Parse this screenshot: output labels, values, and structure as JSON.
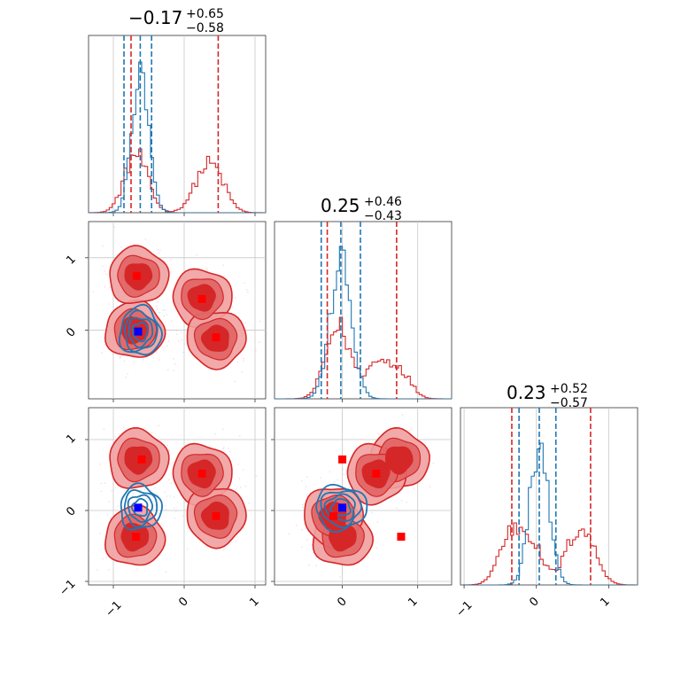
{
  "colors": {
    "red": "#d62728",
    "red_light": "#f0a0a0",
    "red_mid": "#e06666",
    "blue": "#1f77b4",
    "grid": "#c8c8c8",
    "marker_red": "#ff0000",
    "marker_blue": "#0000ff"
  },
  "titles": [
    {
      "value": "−0.17",
      "plus": "+0.65",
      "minus": "−0.58"
    },
    {
      "value": "0.25",
      "plus": "+0.46",
      "minus": "−0.43"
    },
    {
      "value": "0.23",
      "plus": "+0.52",
      "minus": "−0.57"
    }
  ],
  "tick_labels": {
    "x_col1": [
      "−1",
      "0",
      "1"
    ],
    "x_col2": [
      "0",
      "1"
    ],
    "x_col3": [
      "−1",
      "0",
      "1"
    ],
    "y_row2": [
      "1",
      "0"
    ],
    "y_row3": [
      "1",
      "0",
      "−1"
    ]
  },
  "chart_data": {
    "type": "scatter",
    "layout": "corner",
    "grid": true,
    "series": [
      {
        "color": "#d62728",
        "modes": [
          [
            -0.7,
            0.0,
            -0.37
          ],
          [
            -0.65,
            0.75,
            0.72
          ],
          [
            0.25,
            0.45,
            0.52
          ],
          [
            0.45,
            -0.12,
            -0.08
          ]
        ],
        "mode_weights": [
          1.0,
          0.7,
          0.8,
          0.9
        ],
        "mode_sd": [
          0.16,
          0.15,
          0.16
        ]
      },
      {
        "color": "#1f77b4",
        "modes": [
          [
            -0.62,
            -0.02,
            0.04
          ]
        ],
        "mode_sd": [
          0.12,
          0.14,
          0.13
        ]
      }
    ],
    "histograms": [
      {
        "parameter": 1,
        "xlim": [
          -1.35,
          1.15
        ],
        "red_quantiles": [
          -0.75,
          0.48
        ],
        "blue_quantiles": [
          -0.85,
          -0.62,
          -0.46
        ]
      },
      {
        "parameter": 2,
        "xlim": [
          -0.9,
          1.45
        ],
        "red_quantiles": [
          -0.2,
          0.72
        ],
        "blue_quantiles": [
          -0.28,
          -0.02,
          0.24
        ]
      },
      {
        "parameter": 3,
        "xlim": [
          -1.05,
          1.4
        ],
        "red_quantiles": [
          -0.34,
          0.75
        ],
        "blue_quantiles": [
          -0.24,
          0.04,
          0.27
        ]
      }
    ],
    "panels": [
      {
        "pair": [
          1,
          2
        ],
        "xlim": [
          -1.35,
          1.15
        ],
        "ylim": [
          -0.95,
          1.5
        ]
      },
      {
        "pair": [
          1,
          3
        ],
        "xlim": [
          -1.35,
          1.15
        ],
        "ylim": [
          -1.05,
          1.45
        ]
      },
      {
        "pair": [
          2,
          3
        ],
        "xlim": [
          -0.9,
          1.45
        ],
        "ylim": [
          -1.05,
          1.45
        ]
      }
    ],
    "markers": [
      {
        "panel": [
          1,
          2
        ],
        "color": "red",
        "points": [
          [
            -0.67,
            0.75
          ],
          [
            0.25,
            0.43
          ],
          [
            0.45,
            -0.1
          ],
          [
            -0.65,
            -0.02
          ]
        ]
      },
      {
        "panel": [
          1,
          2
        ],
        "color": "blue",
        "points": [
          [
            -0.65,
            -0.02
          ]
        ]
      },
      {
        "panel": [
          1,
          3
        ],
        "color": "red",
        "points": [
          [
            -0.6,
            0.72
          ],
          [
            0.25,
            0.52
          ],
          [
            0.45,
            -0.08
          ],
          [
            -0.68,
            -0.37
          ]
        ]
      },
      {
        "panel": [
          1,
          3
        ],
        "color": "blue",
        "points": [
          [
            -0.65,
            0.04
          ]
        ]
      },
      {
        "panel": [
          2,
          3
        ],
        "color": "red",
        "points": [
          [
            0.0,
            0.72
          ],
          [
            0.45,
            0.52
          ],
          [
            -0.12,
            -0.08
          ],
          [
            0.78,
            -0.37
          ]
        ]
      },
      {
        "panel": [
          2,
          3
        ],
        "color": "blue",
        "points": [
          [
            0.0,
            0.04
          ]
        ]
      }
    ]
  }
}
